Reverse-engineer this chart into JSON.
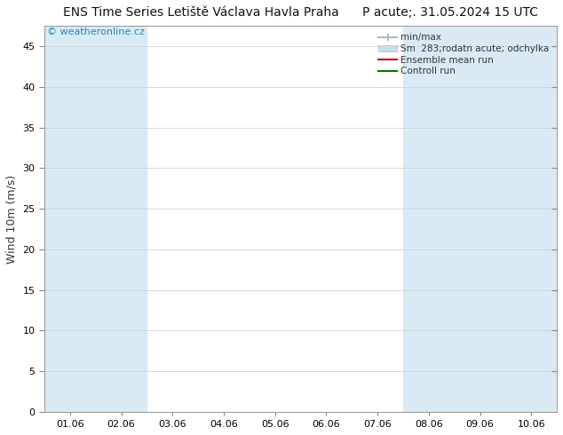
{
  "title": "ENS Time Series Letiště Václava Havla Praha",
  "title_right": "P acute;. 31.05.2024 15 UTC",
  "ylabel": "Wind 10m (m/s)",
  "watermark": "© weatheronline.cz",
  "ylim": [
    0,
    47.5
  ],
  "yticks": [
    0,
    5,
    10,
    15,
    20,
    25,
    30,
    35,
    40,
    45
  ],
  "xtick_labels": [
    "01.06",
    "02.06",
    "03.06",
    "04.06",
    "05.06",
    "06.06",
    "07.06",
    "08.06",
    "09.06",
    "10.06"
  ],
  "xtick_positions": [
    0,
    1,
    2,
    3,
    4,
    5,
    6,
    7,
    8,
    9
  ],
  "shaded_columns": [
    0,
    1,
    7,
    8,
    9
  ],
  "shade_color": "#daeaf5",
  "bg_color": "#ffffff",
  "border_color": "#999999",
  "watermark_color": "#2288bb",
  "title_fontsize": 10,
  "axis_label_fontsize": 9,
  "tick_fontsize": 8,
  "legend_fontsize": 7.5,
  "legend_labels": [
    "min/max",
    "Sm  283;rodatn acute; odchylka",
    "Ensemble mean run",
    "Controll run"
  ],
  "legend_colors": [
    "#aabbcc",
    "#c5dce8",
    "#cc0000",
    "#007700"
  ]
}
